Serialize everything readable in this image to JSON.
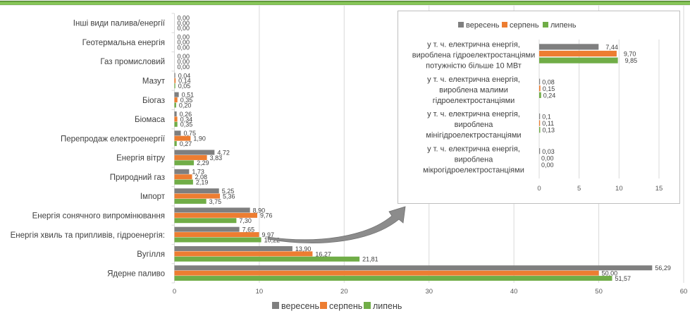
{
  "colors": {
    "series": [
      "#7f7f7f",
      "#ed7d31",
      "#70ad47"
    ],
    "grid": "#d9d9d9",
    "top_band": "#70ad47",
    "text": "#404040"
  },
  "chart_data": [
    {
      "type": "bar",
      "orientation": "horizontal",
      "title": "",
      "xlabel": "",
      "ylabel": "",
      "xlim": [
        0,
        60
      ],
      "xticks": [
        "0",
        "10",
        "20",
        "30",
        "40",
        "50",
        "60"
      ],
      "grid": true,
      "legend": {
        "position": "bottom",
        "entries": [
          "вересень",
          "серпень",
          "липень"
        ]
      },
      "categories": [
        "Інші види палива/енергії",
        "Геотермальна енергія",
        "Газ промисловий",
        "Мазут",
        "Біогаз",
        "Біомаса",
        "Перепродаж електроенергії",
        "Енергія вітру",
        "Природний газ",
        "Імпорт",
        "Енергія сонячного випромінювання",
        "Енергія хвиль та припливів, гідроенергія:",
        "Вугілля",
        "Ядерне паливо"
      ],
      "series": [
        {
          "name": "вересень",
          "values": [
            0.0,
            0.0,
            0.0,
            0.04,
            0.51,
            0.26,
            0.75,
            4.72,
            1.73,
            5.25,
            8.9,
            7.65,
            13.9,
            56.29
          ],
          "labels": [
            "0,00",
            "0,00",
            "0,00",
            "0,04",
            "0,51",
            "0,26",
            "0,75",
            "4,72",
            "1,73",
            "5,25",
            "8,90",
            "7,65",
            "13,90",
            "56,29"
          ]
        },
        {
          "name": "серпень",
          "values": [
            0.0,
            0.0,
            0.0,
            0.14,
            0.35,
            0.34,
            1.9,
            3.83,
            2.08,
            5.36,
            9.76,
            9.97,
            16.27,
            50.0
          ],
          "labels": [
            "0,00",
            "0,00",
            "0,00",
            "0,14",
            "0,35",
            "0,34",
            "1,90",
            "3,83",
            "2,08",
            "5,36",
            "9,76",
            "9,97",
            "16,27",
            "50,00"
          ]
        },
        {
          "name": "липень",
          "values": [
            0.0,
            0.0,
            0.0,
            0.05,
            0.2,
            0.35,
            0.27,
            2.29,
            2.19,
            3.75,
            7.3,
            10.22,
            21.81,
            51.57
          ],
          "labels": [
            "0,00",
            "0,00",
            "0,00",
            "0,05",
            "0,20",
            "0,35",
            "0,27",
            "2,29",
            "2,19",
            "3,75",
            "7,30",
            "10,22",
            "21,81",
            "51,57"
          ]
        }
      ]
    },
    {
      "type": "bar",
      "orientation": "horizontal",
      "title": "",
      "xlim": [
        0,
        15
      ],
      "xticks": [
        "0",
        "5",
        "10",
        "15"
      ],
      "grid": true,
      "legend": {
        "position": "top",
        "entries": [
          "вересень",
          "серпень",
          "липень"
        ]
      },
      "categories": [
        [
          "у т. ч. електрична енергія,",
          "вироблена гідроелектростанціями",
          "потужністю більше 10 МВт"
        ],
        [
          "у т. ч. електрична енергія,",
          "вироблена малими",
          "гідроелектростанціями"
        ],
        [
          "у т. ч. електрична енергія,",
          "вироблена",
          "мінігідроелектростанціями"
        ],
        [
          "у т. ч. електрична енергія,",
          "вироблена",
          "мікрогідроелектростанціями"
        ]
      ],
      "series": [
        {
          "name": "вересень",
          "values": [
            7.44,
            0.08,
            0.1,
            0.03
          ],
          "labels": [
            "7,44",
            "0,08",
            "0,1",
            "0,03"
          ]
        },
        {
          "name": "серпень",
          "values": [
            9.7,
            0.15,
            0.11,
            0.0
          ],
          "labels": [
            "9,70",
            "0,15",
            "0,11",
            "0,00"
          ]
        },
        {
          "name": "липень",
          "values": [
            9.85,
            0.24,
            0.13,
            0.0
          ],
          "labels": [
            "9,85",
            "0,24",
            "0,13",
            "0,00"
          ]
        }
      ],
      "annotation": "callout arrow from 'Енергія хвиль та припливів, гідроенергія:' to inset breakdown"
    }
  ]
}
